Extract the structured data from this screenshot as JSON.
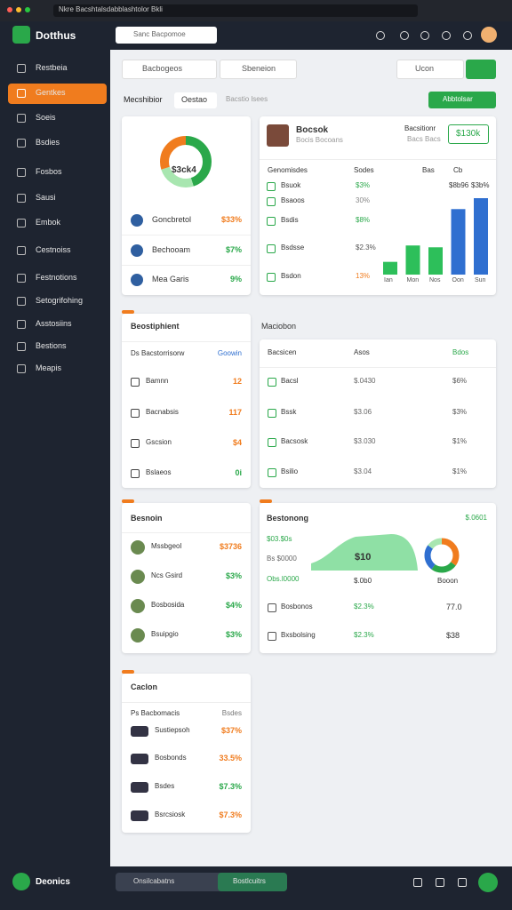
{
  "browser": {
    "url": "Nkre Bacshtalsdabblashtolor Bkli"
  },
  "header": {
    "logo": "Dotthus",
    "search": "Sanc Bacpomoe"
  },
  "sidebar": [
    "Restbeia",
    "Gentkes",
    "Soeis",
    "Bsdies",
    "Fosbos",
    "Sausi",
    "Embok",
    "Cestnoiss",
    "Festnotions",
    "Setogrifohing",
    "Asstosiins",
    "Bestions",
    "Meapis"
  ],
  "filters": {
    "select": "Bacbogeos",
    "input": "Sbeneion",
    "select2": "Ucon"
  },
  "toolbar": {
    "title": "Mecshibior",
    "tab": "Oestao",
    "link": "Bacstio lsees",
    "button": "Abbtolsar"
  },
  "summary": {
    "donut": [
      {
        "value": 45,
        "color": "#2aa84a"
      },
      {
        "value": 25,
        "color": "#a8e6b0"
      },
      {
        "value": 30,
        "color": "#f07c1e"
      }
    ],
    "donut_label": "$3ck4",
    "rows": [
      {
        "name": "Goncbretol",
        "value": "$33%",
        "color": "#f07c1e"
      },
      {
        "name": "Bechooam",
        "value": "$7%",
        "color": "#2aa84a"
      },
      {
        "name": "Mea Garis",
        "value": "9%",
        "color": "#2aa84a"
      }
    ]
  },
  "profile": {
    "name": "Bocsok",
    "sub": "Bocis Bocoans",
    "right": "Bacsitionr",
    "right_sub": "Bacs Bacs",
    "badge": "$130k",
    "header": [
      "Genomisdes",
      "Sodes",
      "Bas",
      "Cb"
    ],
    "rows": [
      {
        "name": "Bsuok",
        "value": "$3%",
        "color": "#2aa84a"
      },
      {
        "name": "Bsaoos",
        "value": "30%",
        "color": "#888888"
      },
      {
        "name": "Bsdis",
        "value": "$8%",
        "color": "#2aa84a"
      },
      {
        "name": "Bsdsse",
        "value": "$2.3%",
        "color": "#555555"
      },
      {
        "name": "Bsdon",
        "value": "13%",
        "color": "#f07c1e"
      }
    ],
    "chart_labels": [
      "$8b96",
      "$3b%"
    ],
    "chart": {
      "type": "bar",
      "categories": [
        "Ian",
        "Mon",
        "Nos",
        "Oon",
        "Sun"
      ],
      "values": [
        14,
        32,
        30,
        72,
        84
      ],
      "colors": [
        "#2dbf5a",
        "#2dbf5a",
        "#2dbf5a",
        "#2f6fd0",
        "#2f6fd0"
      ]
    }
  },
  "engagement": {
    "title": "Beostiphient",
    "header": [
      "Ds Bacstorrisorw",
      "Goowin"
    ],
    "rows": [
      {
        "name": "Bamnn",
        "value": "12",
        "color": "#f07c1e"
      },
      {
        "name": "Bacnabsis",
        "value": "117",
        "color": "#f07c1e"
      },
      {
        "name": "Gscsion",
        "value": "$4",
        "color": "#f07c1e"
      },
      {
        "name": "Bslaeos",
        "value": "0i",
        "color": "#2aa84a"
      }
    ]
  },
  "section": "Maciobon",
  "table": {
    "header": [
      "Bacsicen",
      "Asos",
      "Bdos"
    ],
    "rows": [
      [
        "Bacsl",
        "$.0430",
        "$6%"
      ],
      [
        "Bssk",
        "$3.06",
        "$3%"
      ],
      [
        "Bacsosk",
        "$3.030",
        "$1%"
      ],
      [
        "Bsilio",
        "$3.04",
        "$1%"
      ]
    ]
  },
  "revenue": {
    "title": "Besnoin",
    "rows": [
      {
        "name": "Mssbgeol",
        "value": "$3736",
        "color": "#f07c1e"
      },
      {
        "name": "Ncs Gsird",
        "value": "$3%",
        "color": "#2aa84a"
      },
      {
        "name": "Bosbosida",
        "value": "$4%",
        "color": "#2aa84a"
      },
      {
        "name": "Bsuipgio",
        "value": "$3%",
        "color": "#2aa84a"
      }
    ]
  },
  "trend": {
    "title": "Bestonong",
    "right": "$.0601",
    "labels": [
      "$03.$0s",
      "Bs $0000",
      "Obs.l0000"
    ],
    "area_value": "$10",
    "mid": "$.0b0",
    "donut_label": "Booon",
    "donut": [
      {
        "value": 35,
        "color": "#f07c1e"
      },
      {
        "value": 25,
        "color": "#2aa84a"
      },
      {
        "value": 25,
        "color": "#2f6fd0"
      },
      {
        "value": 15,
        "color": "#a8e6b0"
      }
    ],
    "rows": [
      [
        "Bosbonos",
        "$2.3%",
        "77.0"
      ],
      [
        "Bxsbolsing",
        "$2.3%",
        "$38"
      ]
    ]
  },
  "costs": {
    "title": "Caclon",
    "header": [
      "Ps Bacbomacis",
      "Bsdes"
    ],
    "rows": [
      {
        "name": "Sustiepsoh",
        "value": "$37%",
        "color": "#f07c1e"
      },
      {
        "name": "Bosbonds",
        "value": "33.5%",
        "color": "#f07c1e"
      },
      {
        "name": "Bsdes",
        "value": "$7.3%",
        "color": "#2aa84a"
      },
      {
        "name": "Bsrcsiosk",
        "value": "$7.3%",
        "color": "#f07c1e"
      }
    ]
  },
  "footer": {
    "logo": "Deonics",
    "search": "Onsilcabatns",
    "button": "Bostlcuitrs"
  }
}
